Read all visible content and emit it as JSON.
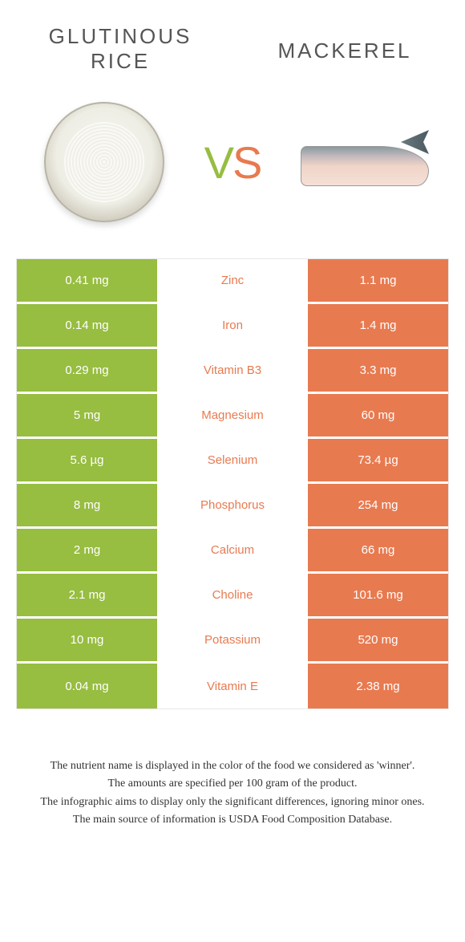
{
  "header": {
    "left_title_line1": "GLUTINOUS",
    "left_title_line2": "RICE",
    "right_title": "MACKEREL",
    "vs_v": "V",
    "vs_s": "S"
  },
  "colors": {
    "left": "#97bd41",
    "right": "#e87a50",
    "text": "#555555"
  },
  "rows": [
    {
      "left": "0.41 mg",
      "nutrient": "Zinc",
      "right": "1.1 mg",
      "winner": "right"
    },
    {
      "left": "0.14 mg",
      "nutrient": "Iron",
      "right": "1.4 mg",
      "winner": "right"
    },
    {
      "left": "0.29 mg",
      "nutrient": "Vitamin B3",
      "right": "3.3 mg",
      "winner": "right"
    },
    {
      "left": "5 mg",
      "nutrient": "Magnesium",
      "right": "60 mg",
      "winner": "right"
    },
    {
      "left": "5.6 µg",
      "nutrient": "Selenium",
      "right": "73.4 µg",
      "winner": "right"
    },
    {
      "left": "8 mg",
      "nutrient": "Phosphorus",
      "right": "254 mg",
      "winner": "right"
    },
    {
      "left": "2 mg",
      "nutrient": "Calcium",
      "right": "66 mg",
      "winner": "right"
    },
    {
      "left": "2.1 mg",
      "nutrient": "Choline",
      "right": "101.6 mg",
      "winner": "right"
    },
    {
      "left": "10 mg",
      "nutrient": "Potassium",
      "right": "520 mg",
      "winner": "right"
    },
    {
      "left": "0.04 mg",
      "nutrient": "Vitamin E",
      "right": "2.38 mg",
      "winner": "right"
    }
  ],
  "footer": {
    "line1": "The nutrient name is displayed in the color of the food we considered as 'winner'.",
    "line2": "The amounts are specified per 100 gram of the product.",
    "line3": "The infographic aims to display only the significant differences, ignoring minor ones.",
    "line4": "The main source of information is USDA Food Composition Database."
  }
}
